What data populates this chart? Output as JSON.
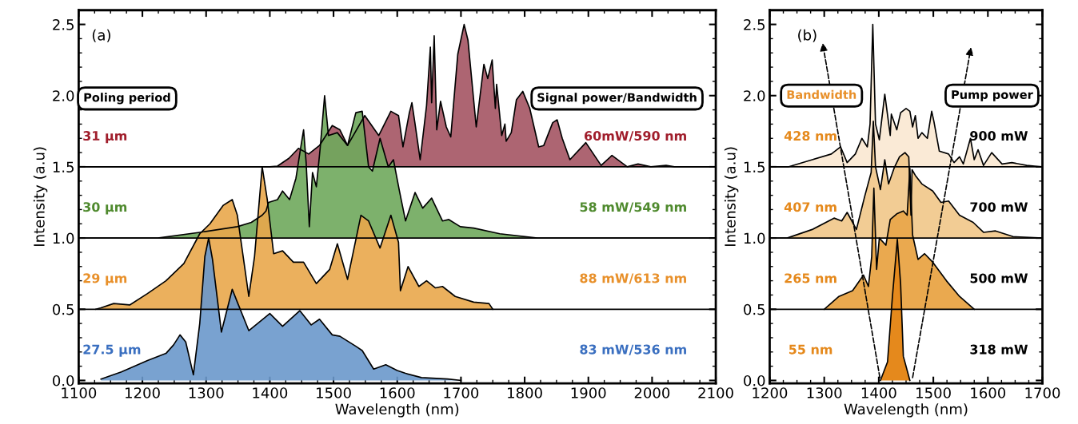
{
  "chart_data": [
    {
      "type": "area",
      "xlabel": "Wavelength (nm)",
      "ylabel": "Intensity (a.u)",
      "xlim": [
        1100,
        2100
      ],
      "ylim": [
        -0.02,
        2.6
      ],
      "xticks": [
        1100,
        1200,
        1300,
        1400,
        1500,
        1600,
        1700,
        1800,
        1900,
        2000,
        2100
      ],
      "yticks": [
        {
          "value": 0,
          "label": "0.0"
        },
        0.5,
        {
          "value": 1,
          "label": "1.0"
        },
        1.5,
        {
          "value": 2,
          "label": "2.0"
        },
        2.5
      ],
      "ref_lines": [
        {
          "axis": "y",
          "value": 1.5,
          "color": "#000000"
        },
        {
          "axis": "y",
          "value": 1.0,
          "color": "#000000"
        },
        {
          "axis": "y",
          "value": 0.5,
          "color": "#000000"
        }
      ],
      "annotations": [
        "(a)",
        "Poling period",
        "Signal power/Bandwidth",
        "60mW/590 nm",
        "58 mW/549 nm",
        "88 mW/613 nm",
        "83 mW/536 nm"
      ],
      "series": [
        {
          "name": "31 µm",
          "color": "#a45463",
          "x": [
            1100,
            1400,
            1412,
            1430,
            1445,
            1461,
            1478,
            1498,
            1510,
            1522,
            1549,
            1571,
            1590,
            1602,
            1609,
            1619,
            1623,
            1628,
            1636,
            1646,
            1652,
            1654,
            1658,
            1662,
            1668,
            1677,
            1684,
            1695,
            1705,
            1711,
            1724,
            1736,
            1742,
            1749,
            1754,
            1756,
            1764,
            1769,
            1771,
            1779,
            1787,
            1797,
            1808,
            1822,
            1830,
            1844,
            1851,
            1859,
            1871,
            1896,
            1920,
            1937,
            1961,
            1978,
            1998,
            2022,
            2035,
            2100
          ],
          "values": [
            1.5,
            1.5,
            1.505,
            1.56,
            1.63,
            1.59,
            1.65,
            1.79,
            1.76,
            1.65,
            1.86,
            1.72,
            1.89,
            1.86,
            1.64,
            1.88,
            1.95,
            1.8,
            1.55,
            1.93,
            2.34,
            1.95,
            2.42,
            1.76,
            1.96,
            1.78,
            1.71,
            2.29,
            2.5,
            2.39,
            1.78,
            2.22,
            2.12,
            2.25,
            1.91,
            2.08,
            1.72,
            1.8,
            1.68,
            1.74,
            1.97,
            2.03,
            1.91,
            1.64,
            1.65,
            1.81,
            1.83,
            1.7,
            1.55,
            1.67,
            1.51,
            1.58,
            1.5,
            1.52,
            1.5,
            1.51,
            1.5,
            1.5
          ]
        },
        {
          "name": "30 µm",
          "color": "#6fa95c",
          "x": [
            1100,
            1224,
            1290,
            1349,
            1371,
            1388,
            1394,
            1398,
            1412,
            1420,
            1431,
            1441,
            1449,
            1453,
            1457,
            1462,
            1467,
            1473,
            1479,
            1486,
            1492,
            1506,
            1522,
            1535,
            1545,
            1555,
            1561,
            1573,
            1586,
            1594,
            1603,
            1613,
            1628,
            1640,
            1654,
            1671,
            1681,
            1699,
            1720,
            1761,
            1820,
            2100
          ],
          "values": [
            1.0,
            1.0,
            1.04,
            1.08,
            1.11,
            1.16,
            1.19,
            1.25,
            1.27,
            1.33,
            1.27,
            1.42,
            1.65,
            1.76,
            1.53,
            1.08,
            1.46,
            1.36,
            1.63,
            2.0,
            1.72,
            1.74,
            1.65,
            1.88,
            1.89,
            1.5,
            1.47,
            1.7,
            1.5,
            1.55,
            1.34,
            1.12,
            1.32,
            1.21,
            1.28,
            1.12,
            1.13,
            1.08,
            1.07,
            1.03,
            1.0,
            1.0
          ]
        },
        {
          "name": "29 µm",
          "color": "#e9a74b",
          "x": [
            1127,
            1135,
            1155,
            1180,
            1208,
            1237,
            1265,
            1290,
            1306,
            1327,
            1341,
            1349,
            1367,
            1376,
            1388,
            1396,
            1406,
            1420,
            1437,
            1453,
            1473,
            1494,
            1506,
            1522,
            1543,
            1555,
            1573,
            1590,
            1602,
            1605,
            1617,
            1634,
            1646,
            1660,
            1671,
            1691,
            1720,
            1744,
            1750
          ],
          "values": [
            0.5,
            0.51,
            0.54,
            0.53,
            0.61,
            0.7,
            0.82,
            1.03,
            1.1,
            1.23,
            1.27,
            1.16,
            0.59,
            0.87,
            1.5,
            1.27,
            0.89,
            0.91,
            0.83,
            0.83,
            0.68,
            0.78,
            0.96,
            0.71,
            1.16,
            1.12,
            0.93,
            1.16,
            0.97,
            0.63,
            0.8,
            0.66,
            0.7,
            0.65,
            0.66,
            0.59,
            0.55,
            0.54,
            0.5
          ]
        },
        {
          "name": "27.5 µm",
          "color": "#6a98cb",
          "x": [
            1135,
            1167,
            1208,
            1237,
            1249,
            1259,
            1268,
            1280,
            1290,
            1298,
            1304,
            1310,
            1324,
            1341,
            1349,
            1367,
            1400,
            1420,
            1447,
            1465,
            1478,
            1498,
            1510,
            1535,
            1545,
            1563,
            1582,
            1600,
            1613,
            1638,
            1679,
            1700
          ],
          "values": [
            0.01,
            0.06,
            0.14,
            0.19,
            0.25,
            0.32,
            0.27,
            0.04,
            0.4,
            0.87,
            1.0,
            0.85,
            0.34,
            0.64,
            0.55,
            0.35,
            0.47,
            0.38,
            0.49,
            0.39,
            0.43,
            0.32,
            0.31,
            0.24,
            0.21,
            0.08,
            0.11,
            0.07,
            0.05,
            0.02,
            0.01,
            0.0
          ]
        }
      ]
    },
    {
      "type": "area",
      "xlabel": "Wavelength (nm)",
      "ylabel": "Intensity (a.u)",
      "xlim": [
        1200,
        1700
      ],
      "ylim": [
        -0.02,
        2.6
      ],
      "xticks": [
        1200,
        1300,
        1400,
        1500,
        1600,
        1700
      ],
      "yticks": [
        {
          "value": 0,
          "label": "0.0"
        },
        0.5,
        {
          "value": 1,
          "label": "1.0"
        },
        1.5,
        {
          "value": 2,
          "label": "2.0"
        },
        2.5
      ],
      "ref_lines": [
        {
          "axis": "y",
          "value": 1.5,
          "color": "#000000"
        },
        {
          "axis": "y",
          "value": 1.0,
          "color": "#000000"
        },
        {
          "axis": "y",
          "value": 0.5,
          "color": "#000000"
        }
      ],
      "annotations": [
        "(b)",
        "Bandwidth",
        "Pump power",
        "900 mW",
        "700 mW",
        "500 mW",
        "318 mW",
        "428 nm",
        "407 nm",
        "265 nm",
        "55 nm"
      ],
      "series": [
        {
          "color": "#faead6",
          "x": [
            1200,
            1234,
            1278,
            1313,
            1330,
            1342,
            1357,
            1369,
            1379,
            1384,
            1389,
            1394,
            1401,
            1411,
            1421,
            1423,
            1433,
            1440,
            1450,
            1457,
            1462,
            1467,
            1472,
            1479,
            1489,
            1497,
            1501,
            1511,
            1528,
            1538,
            1548,
            1555,
            1568,
            1575,
            1582,
            1592,
            1607,
            1626,
            1644,
            1671,
            1700
          ],
          "values": [
            1.5,
            1.5,
            1.55,
            1.59,
            1.64,
            1.53,
            1.59,
            1.7,
            1.64,
            1.8,
            2.5,
            1.8,
            1.69,
            2.01,
            1.72,
            1.87,
            1.76,
            1.88,
            1.91,
            1.89,
            1.78,
            1.86,
            1.7,
            1.74,
            1.7,
            1.89,
            1.82,
            1.61,
            1.59,
            1.53,
            1.57,
            1.52,
            1.7,
            1.55,
            1.62,
            1.51,
            1.6,
            1.52,
            1.53,
            1.51,
            1.5
          ]
        },
        {
          "color": "#f2cc94",
          "x": [
            1200,
            1232,
            1278,
            1318,
            1332,
            1342,
            1359,
            1374,
            1386,
            1390,
            1394,
            1403,
            1411,
            1418,
            1428,
            1438,
            1448,
            1455,
            1459,
            1461,
            1467,
            1479,
            1499,
            1514,
            1528,
            1548,
            1573,
            1592,
            1614,
            1646,
            1700
          ],
          "values": [
            1.0,
            1.0,
            1.06,
            1.14,
            1.12,
            1.18,
            1.06,
            1.29,
            1.46,
            1.82,
            1.5,
            1.34,
            1.55,
            1.38,
            1.49,
            1.57,
            1.6,
            1.57,
            1.16,
            1.48,
            1.44,
            1.38,
            1.33,
            1.25,
            1.26,
            1.16,
            1.11,
            1.04,
            1.05,
            1.01,
            1.0
          ]
        },
        {
          "color": "#eaa94f",
          "x": [
            1300,
            1327,
            1352,
            1372,
            1381,
            1387,
            1391,
            1396,
            1401,
            1413,
            1421,
            1433,
            1445,
            1452,
            1457,
            1462,
            1472,
            1484,
            1499,
            1524,
            1548,
            1575
          ],
          "values": [
            0.5,
            0.59,
            0.63,
            0.74,
            0.66,
            0.87,
            1.35,
            0.78,
            1.0,
            0.95,
            1.13,
            1.17,
            1.19,
            1.16,
            1.49,
            1.02,
            0.85,
            0.89,
            0.83,
            0.7,
            0.59,
            0.5
          ]
        },
        {
          "color": "#e5891c",
          "x": [
            1403,
            1416,
            1425,
            1434,
            1440,
            1445,
            1457
          ],
          "values": [
            0,
            0.13,
            0.59,
            0.99,
            0.68,
            0.17,
            0
          ]
        },
        {
          "type": "line",
          "color": "#000000",
          "line_style": "dashed",
          "x": [
            1402,
            1297
          ],
          "values": [
            0.02,
            2.37
          ]
        },
        {
          "type": "line",
          "color": "#000000",
          "line_style": "dashed",
          "x": [
            1462,
            1569
          ],
          "values": [
            0.02,
            2.34
          ]
        }
      ]
    }
  ]
}
